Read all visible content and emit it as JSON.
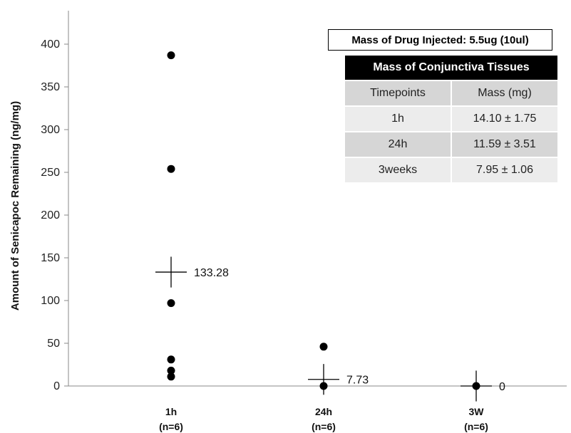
{
  "chart_data": {
    "type": "scatter",
    "ylabel": "Amount of Senicapoc  Remaining (ng/mg)",
    "xlabel": "",
    "ylim": [
      0,
      420
    ],
    "yticks": [
      0,
      50,
      100,
      150,
      200,
      250,
      300,
      350,
      400
    ],
    "categories": [
      {
        "label": "1h",
        "n": "(n=6)"
      },
      {
        "label": "24h",
        "n": "(n=6)"
      },
      {
        "label": "3W",
        "n": "(n=6)"
      }
    ],
    "points": [
      [
        387,
        254,
        97,
        31,
        18,
        11
      ],
      [
        46,
        0
      ],
      [
        0
      ]
    ],
    "means": [
      {
        "value": 133.28,
        "label": "133.28"
      },
      {
        "value": 7.73,
        "label": "7.73"
      },
      {
        "value": 0,
        "label": "0"
      }
    ],
    "error_halfwidth": [
      18,
      18,
      18
    ]
  },
  "inset": {
    "mass_injected": "Mass of Drug Injected: 5.5ug (10ul)",
    "table_title": "Mass of Conjunctiva Tissues",
    "headers": [
      "Timepoints",
      "Mass (mg)"
    ],
    "rows": [
      [
        "1h",
        "14.10 ± 1.75"
      ],
      [
        "24h",
        "11.59 ± 3.51"
      ],
      [
        "3weeks",
        "7.95 ± 1.06"
      ]
    ]
  }
}
